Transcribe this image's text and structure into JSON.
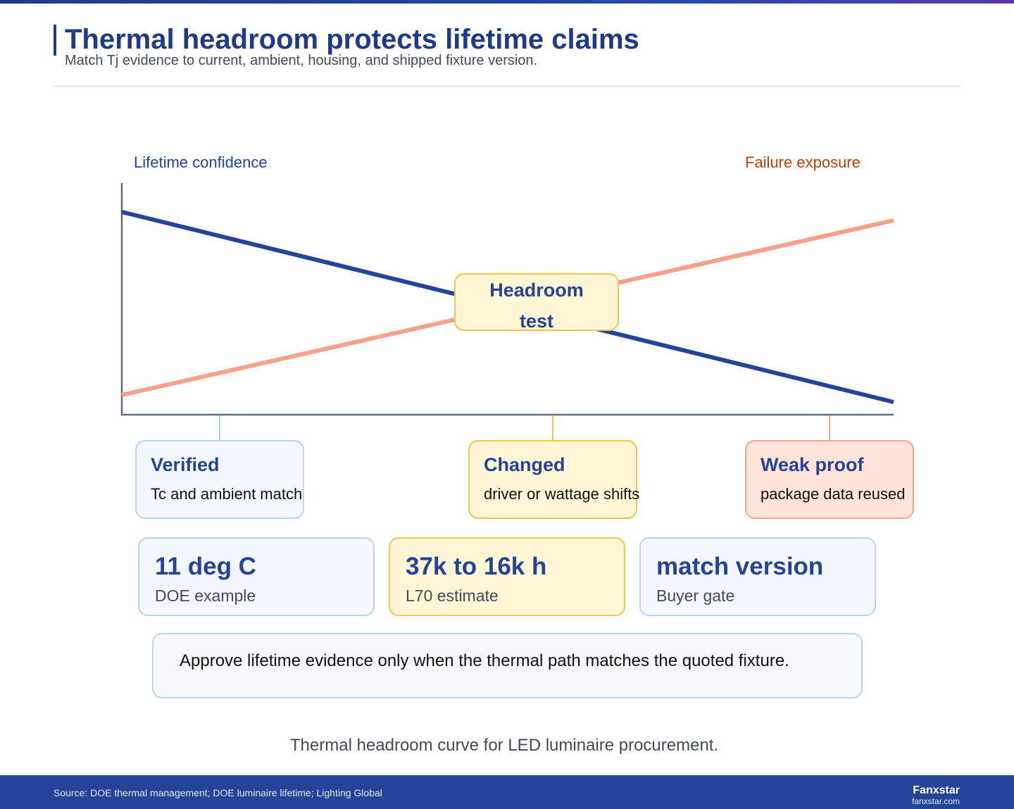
{
  "header": {
    "title": "Thermal headroom protects lifetime claims",
    "subtitle": "Match Tj evidence to current, ambient, housing, and shipped fixture version."
  },
  "diagram": {
    "left_axis_label": "Lifetime confidence",
    "right_axis_label": "Failure exposure",
    "pivot_line1": "Headroom",
    "pivot_line2": "test",
    "colors": {
      "confidence": "#24449a",
      "exposure": "#f8a088",
      "axis": "#5f6b7a"
    }
  },
  "cards": [
    {
      "head": "Verified",
      "body": "Tc and ambient match"
    },
    {
      "head": "Changed",
      "body": "driver or wattage shifts"
    },
    {
      "head": "Weak proof",
      "body": "package data reused"
    }
  ],
  "metrics": [
    {
      "value": "11 deg C",
      "label": "DOE example"
    },
    {
      "value": "37k to 16k h",
      "label": "L70 estimate"
    },
    {
      "value": "match version",
      "label": "Buyer gate"
    }
  ],
  "note": "Approve lifetime evidence only when the thermal path matches the quoted fixture.",
  "caption": "Thermal headroom curve for LED luminaire procurement.",
  "footer": {
    "source": "Source: DOE thermal management; DOE luminaire lifetime; Lighting Global",
    "brand": "Fanxstar",
    "site": "fanxstar.com"
  }
}
